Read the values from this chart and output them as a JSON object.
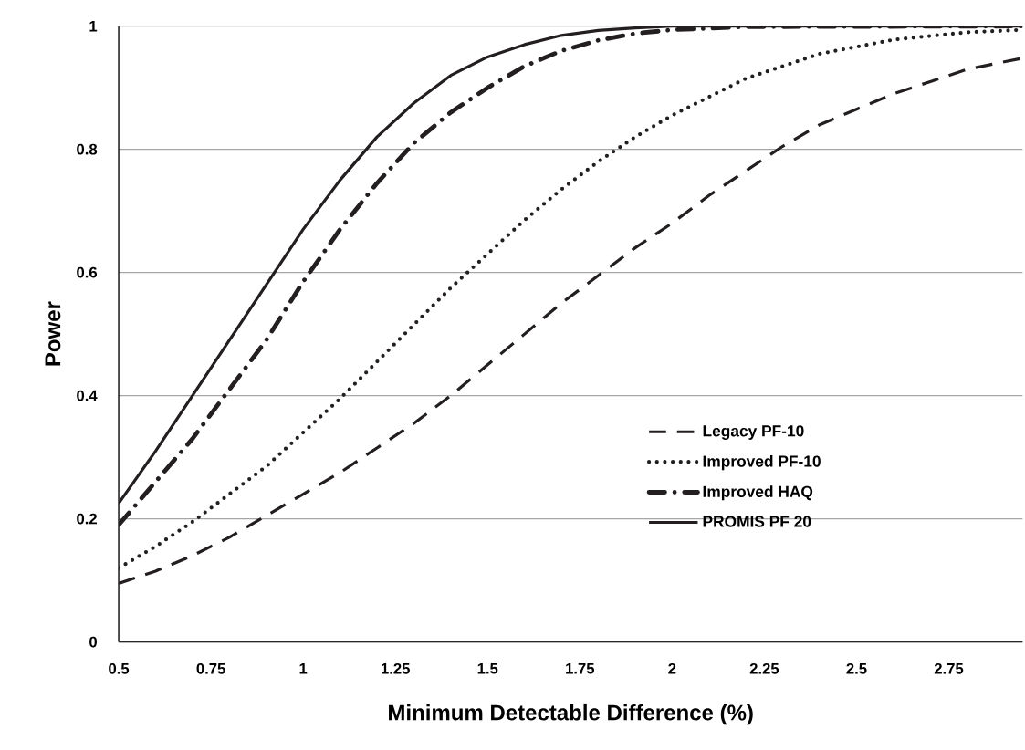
{
  "chart_data": {
    "type": "line",
    "xlabel": "Minimum Detectable Difference (%)",
    "ylabel": "Power",
    "xlim": [
      0.5,
      2.95
    ],
    "xticks": [
      0.5,
      0.75,
      1,
      1.25,
      1.5,
      1.75,
      2,
      2.25,
      2.5,
      2.75
    ],
    "ylim": [
      0,
      1
    ],
    "yticks": [
      0,
      0.2,
      0.4,
      0.6,
      0.8,
      1
    ],
    "grid": "y",
    "legend": "bottom right",
    "series": [
      {
        "name": "Legacy PF-10",
        "color": "#231f20",
        "line_style": "dashed",
        "x": [
          0.5,
          0.6,
          0.7,
          0.8,
          0.9,
          1.0,
          1.1,
          1.2,
          1.3,
          1.4,
          1.5,
          1.6,
          1.7,
          1.8,
          1.9,
          2.0,
          2.1,
          2.2,
          2.3,
          2.4,
          2.5,
          2.6,
          2.7,
          2.8,
          2.95
        ],
        "values": [
          0.095,
          0.115,
          0.14,
          0.17,
          0.205,
          0.24,
          0.275,
          0.315,
          0.355,
          0.4,
          0.45,
          0.5,
          0.55,
          0.595,
          0.64,
          0.68,
          0.725,
          0.765,
          0.805,
          0.84,
          0.865,
          0.89,
          0.91,
          0.93,
          0.948
        ]
      },
      {
        "name": "Improved PF-10",
        "color": "#231f20",
        "line_style": "dotted",
        "x": [
          0.5,
          0.6,
          0.7,
          0.8,
          0.9,
          1.0,
          1.1,
          1.2,
          1.3,
          1.4,
          1.5,
          1.6,
          1.7,
          1.8,
          1.9,
          2.0,
          2.2,
          2.4,
          2.6,
          2.8,
          2.95
        ],
        "values": [
          0.12,
          0.155,
          0.195,
          0.24,
          0.285,
          0.34,
          0.395,
          0.455,
          0.515,
          0.575,
          0.63,
          0.685,
          0.735,
          0.78,
          0.82,
          0.855,
          0.915,
          0.955,
          0.978,
          0.99,
          0.994
        ]
      },
      {
        "name": "Improved HAQ",
        "color": "#231f20",
        "line_style": "dashdot",
        "x": [
          0.5,
          0.6,
          0.7,
          0.8,
          0.9,
          1.0,
          1.1,
          1.2,
          1.3,
          1.4,
          1.5,
          1.6,
          1.7,
          1.8,
          1.9,
          2.0,
          2.2,
          2.95
        ],
        "values": [
          0.19,
          0.26,
          0.33,
          0.41,
          0.49,
          0.585,
          0.67,
          0.745,
          0.81,
          0.86,
          0.9,
          0.935,
          0.96,
          0.977,
          0.988,
          0.994,
          0.999,
          1
        ]
      },
      {
        "name": "PROMIS PF 20",
        "color": "#231f20",
        "line_style": "solid",
        "x": [
          0.5,
          0.6,
          0.7,
          0.8,
          0.9,
          1.0,
          1.1,
          1.2,
          1.3,
          1.4,
          1.5,
          1.6,
          1.7,
          1.8,
          1.9,
          2.0,
          2.95
        ],
        "values": [
          0.225,
          0.31,
          0.4,
          0.49,
          0.58,
          0.67,
          0.75,
          0.82,
          0.875,
          0.92,
          0.95,
          0.97,
          0.985,
          0.993,
          0.997,
          1,
          1
        ]
      }
    ]
  }
}
